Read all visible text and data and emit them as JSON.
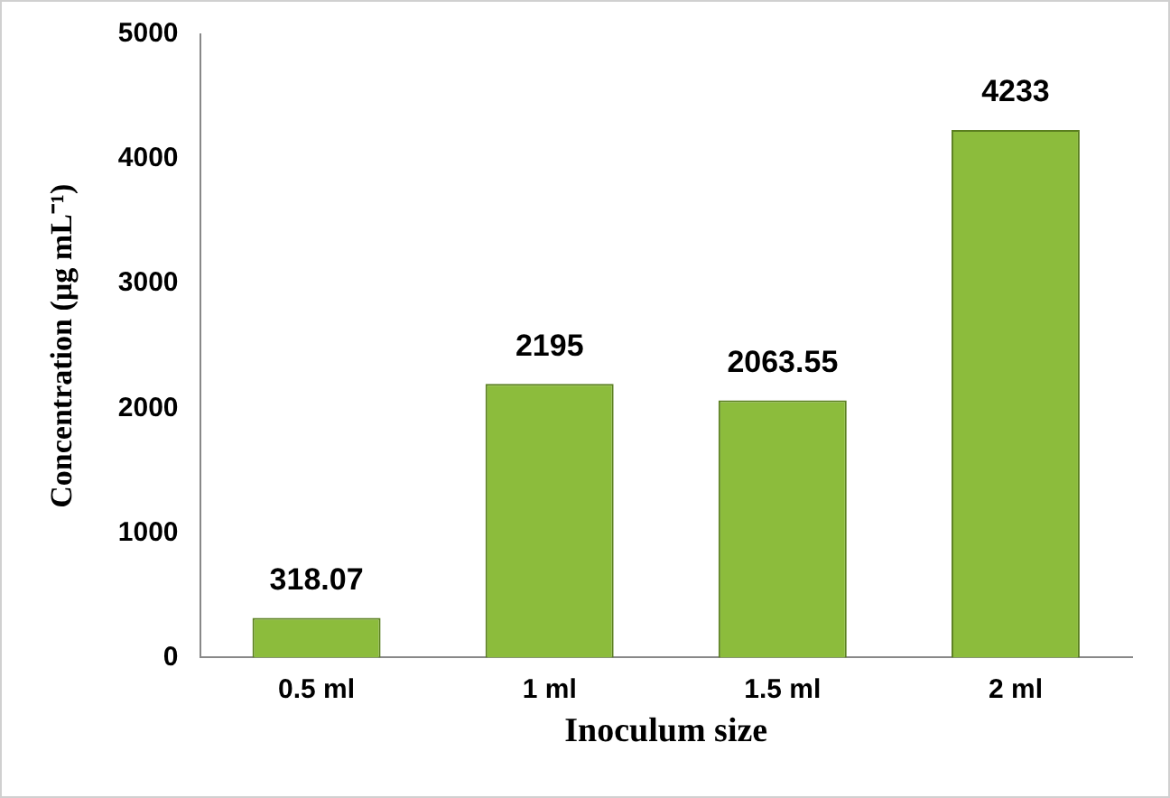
{
  "chart_data": {
    "type": "bar",
    "xlabel": "Inoculum size",
    "ylabel": "Concentration (µg mL⁻¹)",
    "categories": [
      "0.5 ml",
      "1 ml",
      "1.5 ml",
      "2 ml"
    ],
    "values": [
      318.07,
      2195,
      2063.55,
      4233
    ],
    "color": "#8cbc3c",
    "ylim": [
      0,
      5000
    ],
    "yticks": [
      0,
      1000,
      2000,
      3000,
      4000,
      5000
    ],
    "grid": false,
    "legend": false,
    "data_labels": true
  }
}
